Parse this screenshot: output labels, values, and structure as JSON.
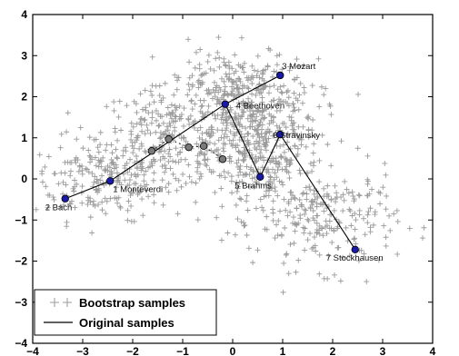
{
  "chart_data": {
    "type": "scatter",
    "title": "",
    "xlabel": "",
    "ylabel": "",
    "xlim": [
      -4,
      4
    ],
    "ylim": [
      -4,
      4
    ],
    "xticks": [
      -4,
      -3,
      -2,
      -1,
      0,
      1,
      2,
      3,
      4
    ],
    "yticks": [
      -4,
      -3,
      -2,
      -1,
      0,
      1,
      2,
      3,
      4
    ],
    "grid": false,
    "legend_position": "bottom-left",
    "colors": {
      "bootstrap": "#9a9a9a",
      "original_point": "#1a1aa8",
      "interpolated_point": "#7a7a7a",
      "line": "#000000"
    },
    "legend": [
      {
        "label": "Bootstrap samples",
        "marker": "plus"
      },
      {
        "label": "Original samples",
        "marker": "line"
      }
    ],
    "series": [
      {
        "name": "Original samples",
        "points": [
          {
            "label": "1 Monteverdi",
            "x": -2.45,
            "y": -0.05
          },
          {
            "label": "2 Bach",
            "x": -3.35,
            "y": -0.48
          },
          {
            "label": "3 Mozart",
            "x": 0.95,
            "y": 2.52
          },
          {
            "label": "4 Beethoven",
            "x": -0.15,
            "y": 1.82
          },
          {
            "label": "5 Brahms",
            "x": 0.55,
            "y": 0.05
          },
          {
            "label": "6 Stravinsky",
            "x": 0.95,
            "y": 1.08
          },
          {
            "label": "7 Stockhausen",
            "x": 2.45,
            "y": -1.72
          }
        ],
        "path_order": [
          "2 Bach",
          "1 Monteverdi",
          "4 Beethoven",
          "3 Mozart",
          "4 Beethoven",
          "5 Brahms",
          "6 Stravinsky",
          "7 Stockhausen"
        ]
      },
      {
        "name": "intermediate",
        "points": [
          {
            "x": -1.62,
            "y": 0.68
          },
          {
            "x": -1.28,
            "y": 0.97
          },
          {
            "x": -0.88,
            "y": 0.77
          },
          {
            "x": -0.58,
            "y": 0.8
          },
          {
            "x": -0.2,
            "y": 0.48
          }
        ]
      },
      {
        "name": "Bootstrap samples",
        "count": 1400,
        "clusters": [
          {
            "cx": -2.6,
            "cy": 0.0,
            "sx": 0.7,
            "sy": 0.5,
            "n": 220
          },
          {
            "cx": -1.3,
            "cy": 1.0,
            "sx": 0.7,
            "sy": 0.6,
            "n": 250
          },
          {
            "cx": 0.3,
            "cy": 1.5,
            "sx": 0.7,
            "sy": 0.7,
            "n": 420
          },
          {
            "cx": 0.6,
            "cy": 0.2,
            "sx": 0.6,
            "sy": 0.6,
            "n": 200
          },
          {
            "cx": 1.9,
            "cy": -1.0,
            "sx": 0.7,
            "sy": 0.6,
            "n": 220
          },
          {
            "cx": 0.0,
            "cy": 2.4,
            "sx": 0.6,
            "sy": 0.4,
            "n": 90
          }
        ]
      }
    ]
  }
}
